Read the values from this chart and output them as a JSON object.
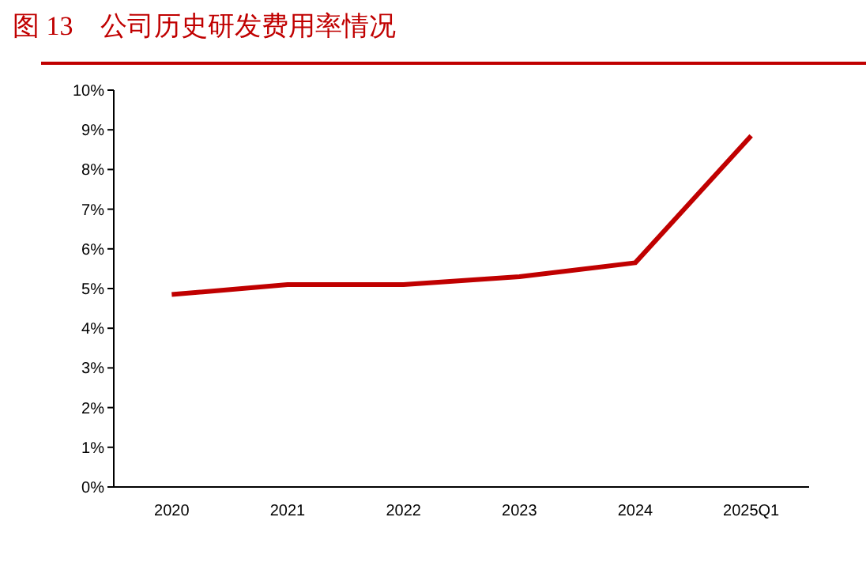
{
  "chart_data": {
    "type": "line",
    "title": "图 13　公司历史研发费用率情况",
    "categories": [
      "2020",
      "2021",
      "2022",
      "2023",
      "2024",
      "2025Q1"
    ],
    "series": [
      {
        "color": "#c00000",
        "values": [
          4.85,
          5.1,
          5.1,
          5.3,
          5.65,
          8.85
        ]
      }
    ],
    "ylim": [
      0,
      10
    ],
    "yticks": [
      {
        "value": 0,
        "label": "0%"
      },
      {
        "value": 1,
        "label": "1%"
      },
      {
        "value": 2,
        "label": "2%"
      },
      {
        "value": 3,
        "label": "3%"
      },
      {
        "value": 4,
        "label": "4%"
      },
      {
        "value": 5,
        "label": "5%"
      },
      {
        "value": 6,
        "label": "6%"
      },
      {
        "value": 7,
        "label": "7%"
      },
      {
        "value": 8,
        "label": "8%"
      },
      {
        "value": 9,
        "label": "9%"
      },
      {
        "value": 10,
        "label": "10%"
      }
    ],
    "grid": false,
    "marker": "none",
    "line_style": "solid"
  }
}
